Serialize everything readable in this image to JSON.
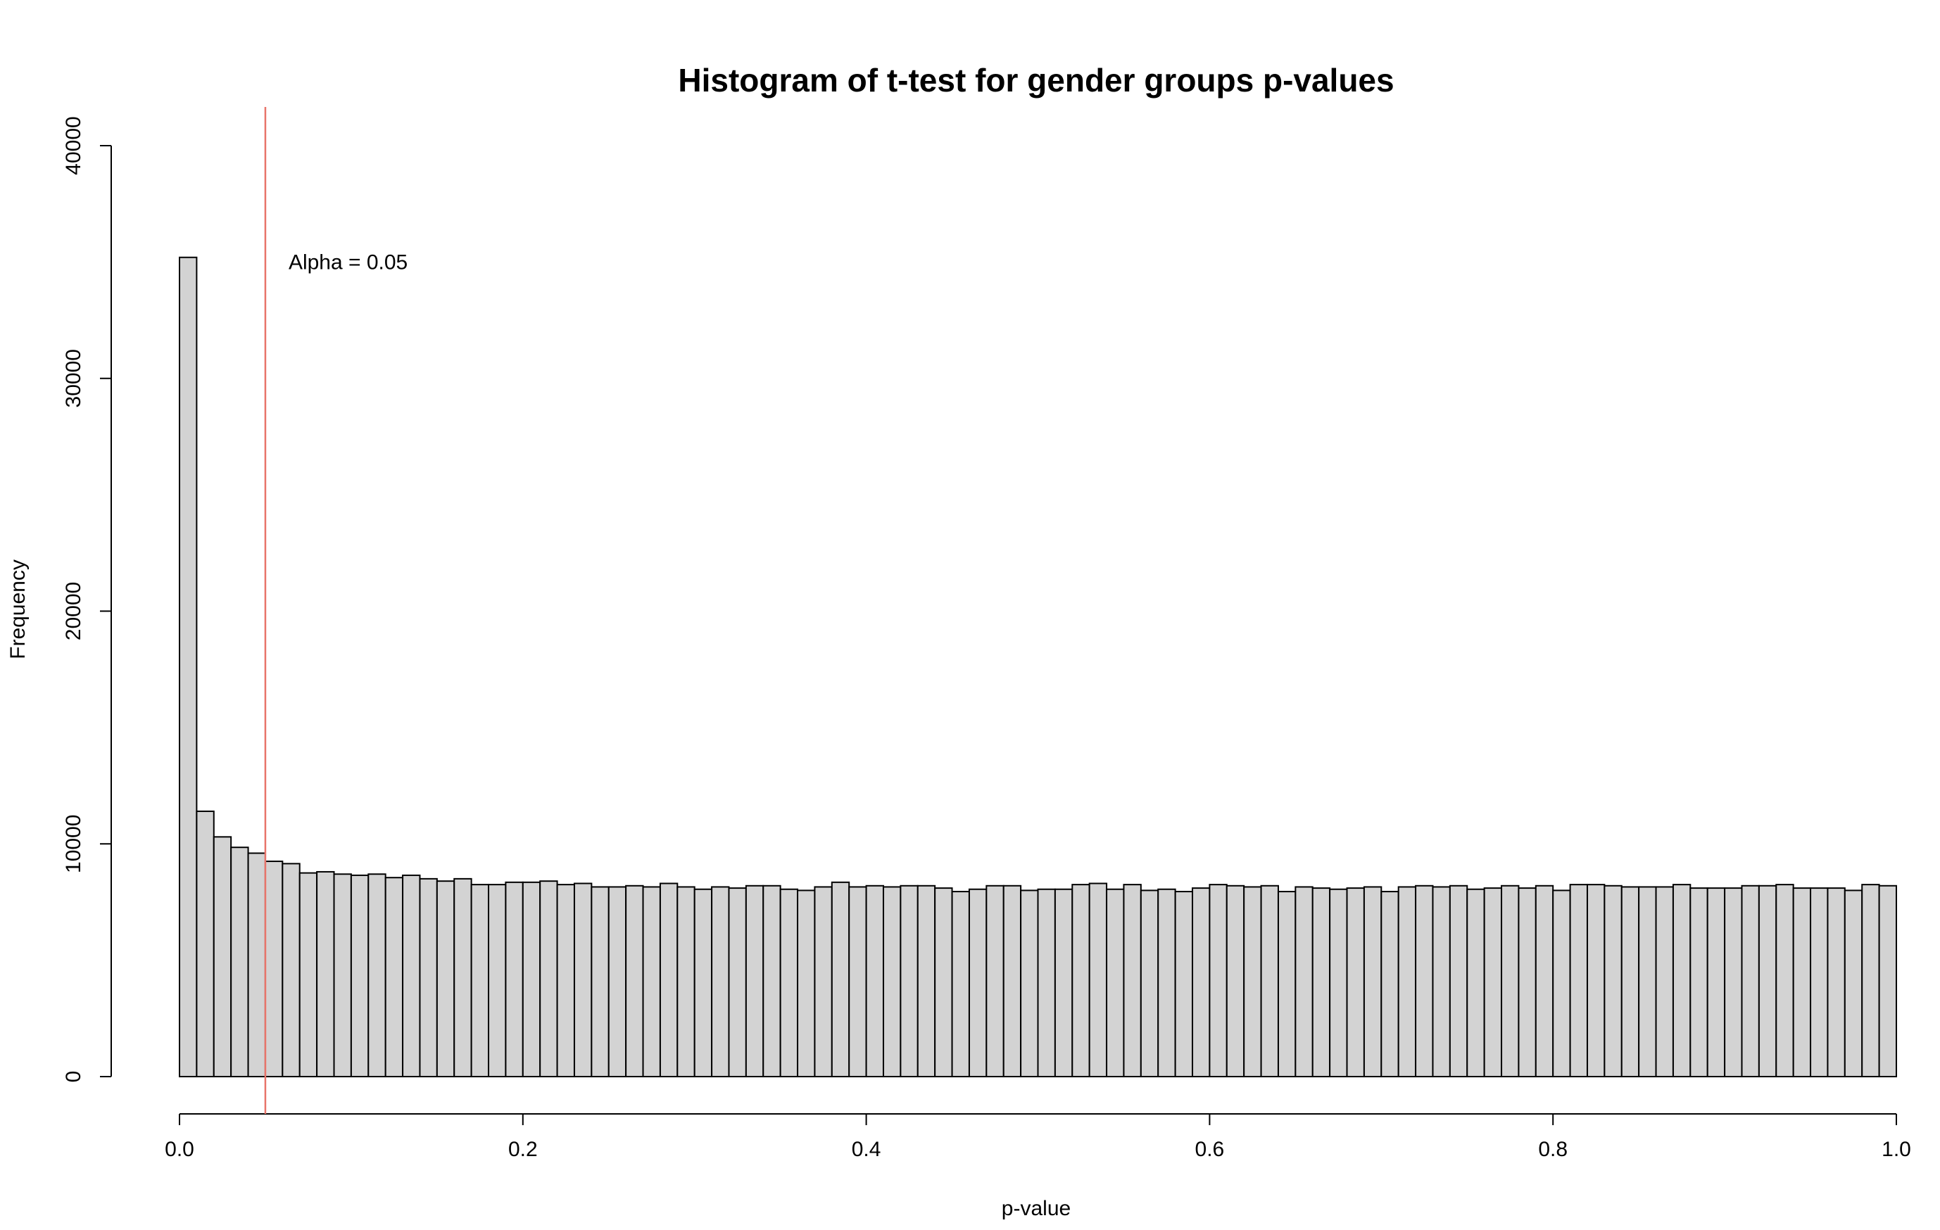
{
  "chart_data": {
    "type": "bar",
    "title": "Histogram of t-test for gender groups p-values",
    "xlabel": "p-value",
    "ylabel": "Frequency",
    "xlim": [
      0,
      1
    ],
    "ylim": [
      0,
      40000
    ],
    "bin_width": 0.01,
    "x_ticks": [
      0,
      0.2,
      0.4,
      0.6,
      0.8,
      1.0
    ],
    "x_tick_labels": [
      "0.0",
      "0.2",
      "0.4",
      "0.6",
      "0.8",
      "1.0"
    ],
    "y_ticks": [
      0,
      10000,
      20000,
      30000,
      40000
    ],
    "y_tick_labels": [
      "0",
      "10000",
      "20000",
      "30000",
      "40000"
    ],
    "values": [
      35200,
      11400,
      10300,
      9850,
      9600,
      9250,
      9150,
      8750,
      8800,
      8700,
      8650,
      8700,
      8550,
      8650,
      8500,
      8400,
      8500,
      8250,
      8250,
      8350,
      8350,
      8400,
      8250,
      8300,
      8150,
      8150,
      8200,
      8150,
      8300,
      8150,
      8050,
      8150,
      8100,
      8200,
      8200,
      8050,
      8000,
      8150,
      8350,
      8150,
      8200,
      8150,
      8200,
      8200,
      8100,
      7950,
      8050,
      8200,
      8200,
      8000,
      8050,
      8050,
      8250,
      8300,
      8050,
      8250,
      8000,
      8050,
      7950,
      8100,
      8250,
      8200,
      8150,
      8200,
      7950,
      8150,
      8100,
      8050,
      8100,
      8150,
      7950,
      8150,
      8200,
      8150,
      8200,
      8050,
      8100,
      8200,
      8100,
      8200,
      8000,
      8250,
      8250,
      8200,
      8150,
      8150,
      8150,
      8250,
      8100,
      8100,
      8100,
      8200,
      8200,
      8250,
      8100,
      8100,
      8100,
      8000,
      8250,
      8200
    ],
    "bar_fill": "#d3d3d3",
    "bar_stroke": "#000000",
    "annotations": [
      {
        "type": "vline",
        "x": 0.05,
        "color": "#e8746a",
        "label": "Alpha = 0.05",
        "label_y": 35000
      }
    ]
  }
}
